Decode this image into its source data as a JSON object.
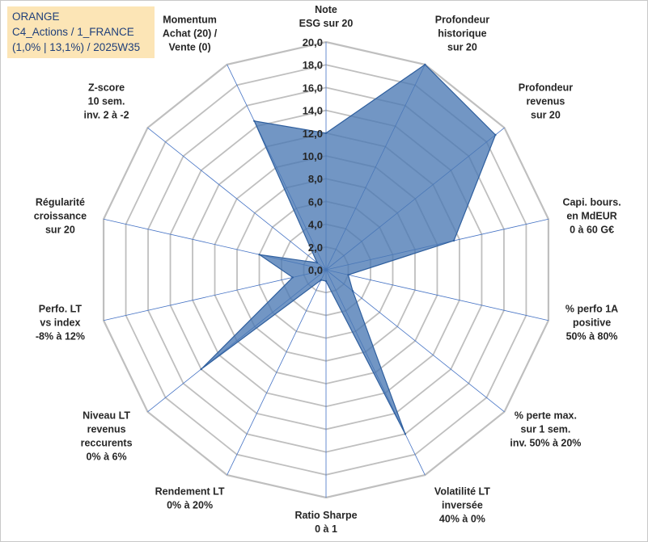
{
  "header": {
    "line1": "ORANGE",
    "line2": "C4_Actions / 1_FRANCE",
    "line3": "(1,0% | 13,1%) / 2025W35"
  },
  "colors": {
    "fill": "#4a78b4",
    "stroke": "#2f5f9e",
    "grid": "#bfbfbf",
    "spoke": "#4472c4",
    "header_bg": "#fce5b6",
    "header_text": "#1f3f7a"
  },
  "chart_data": {
    "type": "radar",
    "rmax": 20,
    "tick_step": 2,
    "grid": true,
    "tick_labels": [
      "0,0",
      "2,0",
      "4,0",
      "6,0",
      "8,0",
      "10,0",
      "12,0",
      "14,0",
      "16,0",
      "18,0",
      "20,0"
    ],
    "categories": [
      [
        "Note",
        "ESG sur 20"
      ],
      [
        "Profondeur",
        "historique",
        "sur 20"
      ],
      [
        "Profondeur",
        "revenus",
        "sur 20"
      ],
      [
        "Capi. bours.",
        "en MdEUR",
        "0 à 60 G€"
      ],
      [
        "% perfo 1A",
        "positive",
        "50% à 80%"
      ],
      [
        "% perte max.",
        "sur 1 sem.",
        "inv. 50% à 20%"
      ],
      [
        "Volatilité LT",
        "inversée",
        "40% à 0%"
      ],
      [
        "Ratio Sharpe",
        "0 à 1"
      ],
      [
        "Rendement LT",
        "0% à 20%"
      ],
      [
        "Niveau LT",
        "revenus",
        "reccurents",
        "0% à 6%"
      ],
      [
        "Perfo. LT",
        "vs index",
        "-8% à 12%"
      ],
      [
        "Régularité",
        "croissance",
        "sur 20"
      ],
      [
        "Z-score",
        "10 sem.",
        "inv. 2 à -2"
      ],
      [
        "Momentum",
        "Achat (20) /",
        "Vente (0)"
      ]
    ],
    "series": [
      {
        "values": [
          12.0,
          20.0,
          19.0,
          11.5,
          2.0,
          3.0,
          16.0,
          1.0,
          1.0,
          14.0,
          3.0,
          6.0,
          1.0,
          14.5
        ]
      }
    ]
  }
}
